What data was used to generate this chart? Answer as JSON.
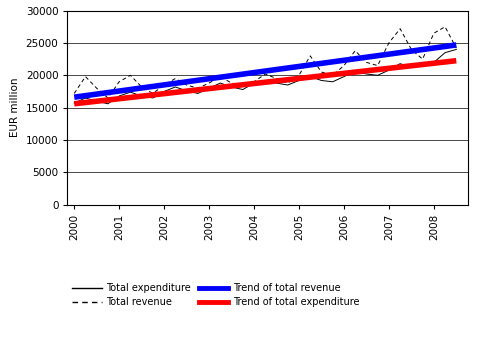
{
  "years_quarterly": [
    2000.0,
    2000.25,
    2000.5,
    2000.75,
    2001.0,
    2001.25,
    2001.5,
    2001.75,
    2002.0,
    2002.25,
    2002.5,
    2002.75,
    2003.0,
    2003.25,
    2003.5,
    2003.75,
    2004.0,
    2004.25,
    2004.5,
    2004.75,
    2005.0,
    2005.25,
    2005.5,
    2005.75,
    2006.0,
    2006.25,
    2006.5,
    2006.75,
    2007.0,
    2007.25,
    2007.5,
    2007.75,
    2008.0,
    2008.25,
    2008.5
  ],
  "total_expenditure": [
    15700,
    16500,
    16000,
    15600,
    16800,
    17400,
    16800,
    16500,
    17500,
    18200,
    17600,
    17200,
    18000,
    18800,
    18200,
    17800,
    18800,
    19200,
    18800,
    18500,
    19200,
    19800,
    19200,
    19000,
    19800,
    20600,
    20200,
    20000,
    20800,
    21800,
    21200,
    21500,
    22000,
    23500,
    24000
  ],
  "total_revenue": [
    17200,
    19800,
    18000,
    16500,
    19000,
    20000,
    18200,
    17200,
    18500,
    19500,
    18500,
    18000,
    18800,
    19800,
    18800,
    18500,
    19000,
    20200,
    19500,
    18800,
    20000,
    23000,
    20500,
    20000,
    21500,
    23800,
    22000,
    21500,
    25000,
    27200,
    24000,
    22500,
    26500,
    27500,
    24200
  ],
  "ylim": [
    0,
    30000
  ],
  "yticks": [
    0,
    5000,
    10000,
    15000,
    20000,
    25000,
    30000
  ],
  "xlim": [
    1999.85,
    2008.75
  ],
  "xtick_positions": [
    2000,
    2001,
    2002,
    2003,
    2004,
    2005,
    2006,
    2007,
    2008
  ],
  "ylabel": "EUR million",
  "legend_labels": [
    "Total expenditure",
    "Total revenue",
    "Trend of total revenue",
    "Trend of total expenditure"
  ],
  "line_color_expenditure": "#000000",
  "line_color_revenue": "#000000",
  "trend_color_revenue": "#0000ff",
  "trend_color_expenditure": "#ff0000",
  "background_color": "#ffffff",
  "grid_color": "#000000"
}
